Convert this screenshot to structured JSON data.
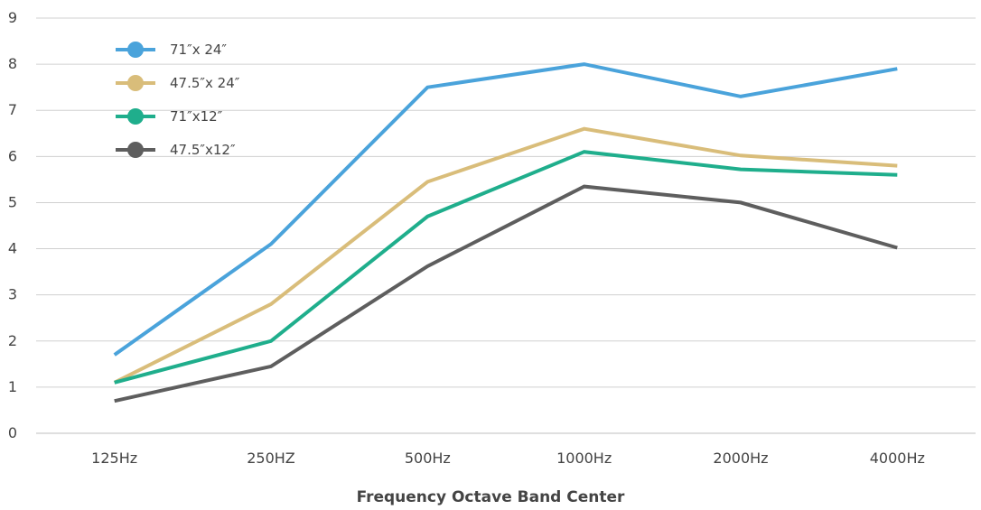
{
  "chart_data": {
    "type": "line",
    "title": "",
    "xlabel": "Frequency Octave Band Center",
    "ylabel": "",
    "categories": [
      "125Hz",
      "250HZ",
      "500Hz",
      "1000Hz",
      "2000Hz",
      "4000Hz"
    ],
    "ylim": [
      0,
      9
    ],
    "yticks": [
      0,
      1,
      2,
      3,
      4,
      5,
      6,
      7,
      8,
      9
    ],
    "grid": true,
    "legend_position": "top-left",
    "series": [
      {
        "name": "71″x 24″",
        "color": "#4aa3db",
        "values": [
          1.7,
          4.1,
          7.5,
          8.0,
          7.3,
          7.9
        ]
      },
      {
        "name": "47.5″x 24″",
        "color": "#d9bd7a",
        "values": [
          1.1,
          2.8,
          5.45,
          6.6,
          6.02,
          5.8
        ]
      },
      {
        "name": "71″x12″",
        "color": "#1fae8c",
        "values": [
          1.1,
          2.0,
          4.7,
          6.1,
          5.72,
          5.6
        ]
      },
      {
        "name": "47.5″x12″",
        "color": "#5e5e5e",
        "values": [
          0.7,
          1.45,
          3.62,
          5.35,
          5.0,
          4.02
        ]
      }
    ]
  }
}
